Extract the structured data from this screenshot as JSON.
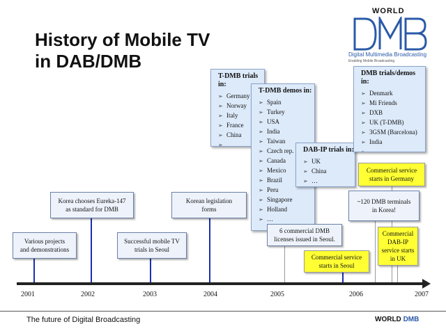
{
  "title": "History of Mobile TV\nin DAB/DMB",
  "logo": {
    "world": "WORLD",
    "subtitle": "Digital Multimedia Broadcasting",
    "tagline": "Enabling Mobile Broadcasting"
  },
  "timeline": {
    "years": [
      "2001",
      "2002",
      "2003",
      "2004",
      "2005",
      "2006",
      "2007"
    ]
  },
  "events": [
    {
      "text": "Various projects\nand demonstrations"
    },
    {
      "text": "Korea chooses Eureka-147\nas standard for DMB"
    },
    {
      "text": "Successful mobile TV\ntrials in Seoul"
    },
    {
      "text": "Korean legislation\nforms"
    },
    {
      "text": "6 commercial DMB\nlicenses issued in Seoul."
    },
    {
      "text": "Commercial service\nstarts in Seoul"
    },
    {
      "text": "Commercial service\nstarts in Germany"
    },
    {
      "text": "~120 DMB terminals\nin Korea!"
    },
    {
      "text": "Commercial\nDAB-IP\nservice starts\nin UK"
    }
  ],
  "panels": {
    "tdmb_trials": {
      "title": "T-DMB trials in:",
      "items": [
        "Germany",
        "Norway",
        "Italy",
        "France",
        "China",
        "…"
      ]
    },
    "tdmb_demos": {
      "title": "T-DMB demos in:",
      "items": [
        "Spain",
        "Turkey",
        "USA",
        "India",
        "Taiwan",
        "Czech rep.",
        "Canada",
        "Mexico",
        "Brazil",
        "Peru",
        "Singapore",
        "Holland",
        "…"
      ]
    },
    "dabip_trials": {
      "title": "DAB-IP trials in:",
      "items": [
        "UK",
        "China",
        "…"
      ]
    },
    "dmb_trials_demos": {
      "title": "DMB trials/demos in:",
      "items": [
        "Denmark",
        "Mi Friends",
        "DXB",
        "UK (T-DMB)",
        "3GSM (Barcelona)",
        "India",
        "…"
      ]
    }
  },
  "footer": {
    "left": "The future of Digital Broadcasting",
    "right_world": "WORLD",
    "right_dmb": "DMB"
  },
  "colors": {
    "tick": "#1a2fb0",
    "panel_bg": "#ddeafa",
    "highlight": "#ffff33",
    "logo_blue": "#2a5aa8"
  }
}
